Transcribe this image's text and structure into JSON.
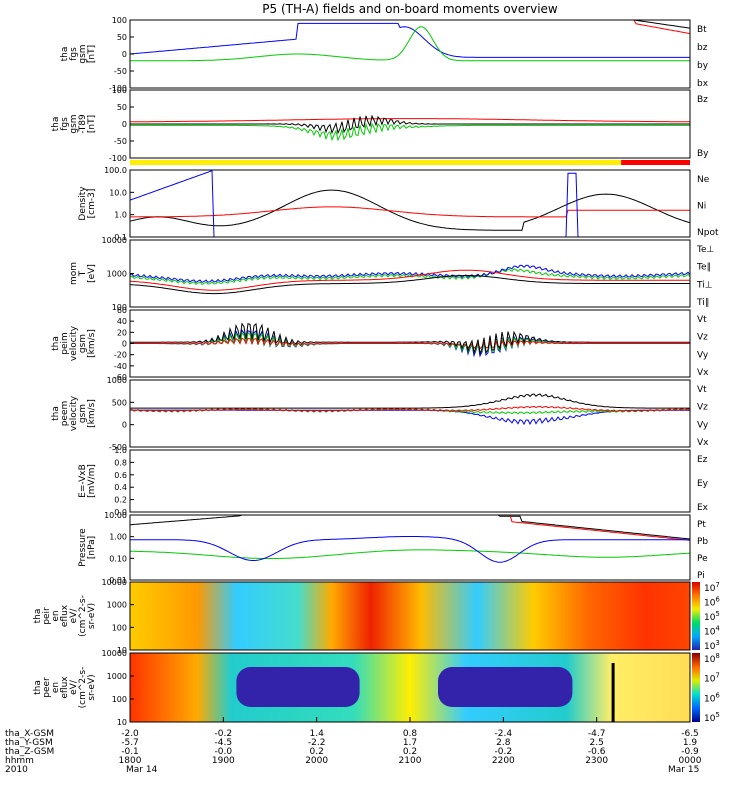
{
  "chart_data": {
    "type": "line",
    "title": "P5 (TH-A) fields and on-board moments overview",
    "time_ticks": [
      "1800",
      "1900",
      "2000",
      "2100",
      "2200",
      "2300",
      "0000"
    ],
    "date_start": "Mar 14",
    "date_end": "Mar 15",
    "year": "2010",
    "ephemeris": [
      {
        "label": "tha_X-GSM",
        "values": [
          "-2.0",
          "-0.2",
          "1.4",
          "0.8",
          "-2.4",
          "-4.7",
          "-6.5"
        ]
      },
      {
        "label": "tha_Y-GSM",
        "values": [
          "-5.7",
          "-4.5",
          "-2.2",
          "1.7",
          "2.8",
          "2.5",
          "1.9"
        ]
      },
      {
        "label": "tha_Z-GSM",
        "values": [
          "-0.1",
          "-0.0",
          "0.2",
          "0.2",
          "-0.2",
          "-0.6",
          "-0.9"
        ]
      },
      {
        "label": "hhmm",
        "values": [
          "1800",
          "1900",
          "2000",
          "2100",
          "2200",
          "2300",
          "0000"
        ]
      }
    ],
    "panels": [
      {
        "ylabel": [
          "tha",
          "fgs",
          "gsm",
          "[nT]"
        ],
        "yticks": [
          "100",
          "50",
          "0",
          "-50",
          "-100"
        ],
        "legend": [
          {
            "name": "Bt",
            "color": "#000000"
          },
          {
            "name": "bz",
            "color": "#ff0000"
          },
          {
            "name": "by",
            "color": "#00cc00"
          },
          {
            "name": "bx",
            "color": "#0000ff"
          }
        ]
      },
      {
        "ylabel": [
          "tha",
          "fgs",
          "gsm",
          "-T89",
          "[nT]"
        ],
        "yticks": [
          "100",
          "50",
          "0",
          "-50",
          "-100"
        ],
        "legend": [
          {
            "name": "Bz",
            "color": "#ff0000"
          },
          {
            "name": "By",
            "color": "#00cc00"
          }
        ]
      },
      {
        "ylabel": [
          "Density",
          "[cm-3]"
        ],
        "yticks": [
          "100.0",
          "10.0",
          "1.0",
          "0.1"
        ],
        "legend": [
          {
            "name": "Ne",
            "color": "#ff0000"
          },
          {
            "name": "Ni",
            "color": "#000000"
          },
          {
            "name": "Npot",
            "color": "#0000ff"
          }
        ]
      },
      {
        "ylabel": [
          "mom",
          "T",
          "[eV]"
        ],
        "yticks": [
          "10000",
          "1000",
          "100"
        ],
        "legend": [
          {
            "name": "Te⊥",
            "color": "#ff0000"
          },
          {
            "name": "Te∥",
            "color": "#000000"
          },
          {
            "name": "Ti⊥",
            "color": "#0000ff"
          },
          {
            "name": "Ti∥",
            "color": "#00cc00"
          }
        ]
      },
      {
        "ylabel": [
          "tha",
          "peim",
          "velocity",
          "gsm",
          "[km/s]"
        ],
        "yticks": [
          "60",
          "40",
          "20",
          "0",
          "-20",
          "-40",
          "-60"
        ],
        "legend": [
          {
            "name": "Vt",
            "color": "#000000"
          },
          {
            "name": "Vz",
            "color": "#ff0000"
          },
          {
            "name": "Vy",
            "color": "#00cc00"
          },
          {
            "name": "Vx",
            "color": "#0000ff"
          }
        ]
      },
      {
        "ylabel": [
          "tha",
          "peem",
          "velocity",
          "gsm",
          "[km/s]"
        ],
        "yticks": [
          "1000",
          "500",
          "0",
          "-500"
        ],
        "legend": [
          {
            "name": "Vt",
            "color": "#000000"
          },
          {
            "name": "Vz",
            "color": "#ff0000"
          },
          {
            "name": "Vy",
            "color": "#00cc00"
          },
          {
            "name": "Vx",
            "color": "#0000ff"
          }
        ]
      },
      {
        "ylabel": [
          "E=-VxB",
          "[mV/m]"
        ],
        "yticks": [
          "1.0",
          "0.8",
          "0.6",
          "0.4",
          "0.2",
          "0.0"
        ],
        "legend": [
          {
            "name": "Ez",
            "color": "#ff0000"
          },
          {
            "name": "Ey",
            "color": "#00cc00"
          },
          {
            "name": "Ex",
            "color": "#0000ff"
          }
        ]
      },
      {
        "ylabel": [
          "Pressure",
          "[nPa]"
        ],
        "yticks": [
          "10.00",
          "1.00",
          "0.10",
          "0.01"
        ],
        "legend": [
          {
            "name": "Pt",
            "color": "#000000"
          },
          {
            "name": "Pb",
            "color": "#ff0000"
          },
          {
            "name": "Pe",
            "color": "#00cc00"
          },
          {
            "name": "Pi",
            "color": "#0000ff"
          }
        ]
      },
      {
        "ylabel": [
          "tha",
          "peir",
          "en",
          "eflux",
          "eV/",
          "(cm^2-s-",
          "sr-eV)"
        ],
        "yticks": [
          "10000",
          "1000",
          "100",
          "10"
        ],
        "colorbar": [
          "10^7",
          "10^6",
          "10^5",
          "10^4",
          "10^3"
        ]
      },
      {
        "ylabel": [
          "tha",
          "peer",
          "en",
          "eflux",
          "eV/",
          "(cm^2-s-",
          "sr-eV)"
        ],
        "yticks": [
          "10000",
          "1000",
          "100",
          "10"
        ],
        "colorbar": [
          "10^8",
          "10^7",
          "10^6",
          "10^5"
        ]
      }
    ]
  }
}
